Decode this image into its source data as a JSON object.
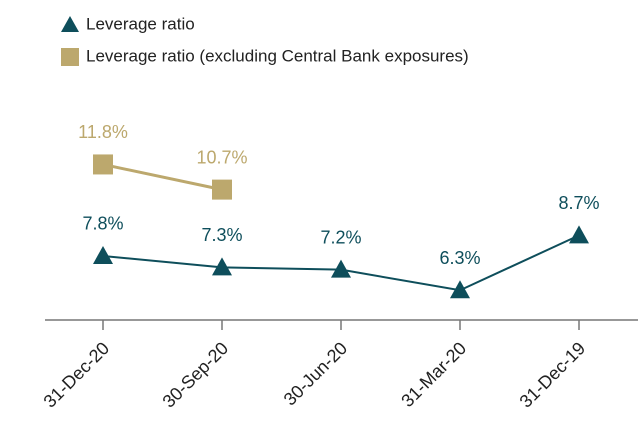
{
  "chart_data": {
    "type": "line",
    "categories": [
      "31-Dec-20",
      "30-Sep-20",
      "30-Jun-20",
      "31-Mar-20",
      "31-Dec-19"
    ],
    "series": [
      {
        "name": "Leverage ratio",
        "color": "#0e4e5b",
        "marker": "triangle",
        "values": [
          7.8,
          7.3,
          7.2,
          6.3,
          8.7
        ],
        "value_labels": [
          "7.8%",
          "7.3%",
          "7.2%",
          "6.3%",
          "8.7%"
        ]
      },
      {
        "name": "Leverage ratio (excluding Central Bank exposures)",
        "color": "#bca86d",
        "marker": "square",
        "values": [
          11.8,
          10.7,
          null,
          null,
          null
        ],
        "value_labels": [
          "11.8%",
          "10.7%",
          null,
          null,
          null
        ]
      }
    ],
    "ylim": [
      5,
      13
    ],
    "legend": "top-left"
  }
}
